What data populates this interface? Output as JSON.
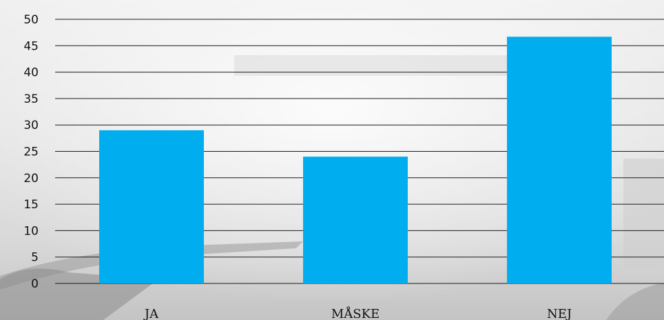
{
  "chart_data": {
    "type": "bar",
    "categories": [
      "JA",
      "MÅSKE",
      "NEJ"
    ],
    "values": [
      29,
      24,
      46.7
    ],
    "ylim": [
      0,
      50
    ],
    "yticks": [
      0,
      5,
      10,
      15,
      20,
      25,
      30,
      35,
      40,
      45,
      50
    ],
    "grid": true,
    "legend": "none",
    "bar_color": "#00aeef",
    "title": "",
    "xlabel": "",
    "ylabel": ""
  }
}
